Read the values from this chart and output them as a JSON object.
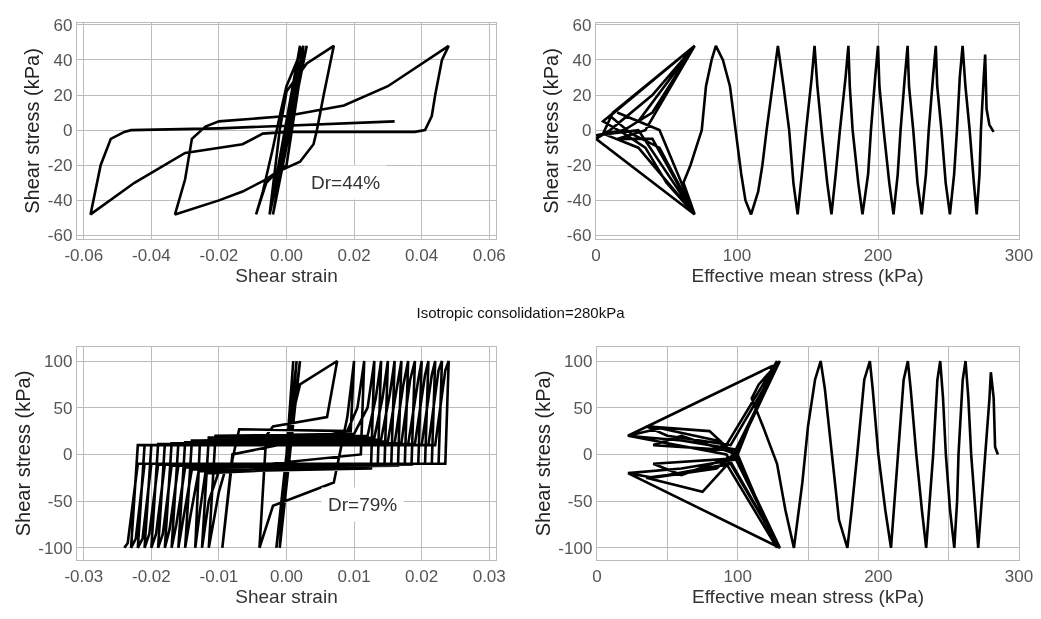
{
  "chart_data": [
    {
      "type": "line",
      "xlabel": "Shear strain",
      "ylabel": "Shear stress (kPa)",
      "xlim": [
        -0.062,
        0.062
      ],
      "ylim": [
        -62,
        61
      ],
      "xticks": [
        -0.06,
        -0.04,
        -0.02,
        {
          "value": 0,
          "label": "0.00"
        },
        0.02,
        0.04,
        0.06
      ],
      "yticks": [
        -60,
        -40,
        -20,
        0,
        20,
        40,
        60
      ],
      "grid": true,
      "line_style": "solid",
      "annotations": [
        "Dr=44%"
      ],
      "series": [
        {
          "color": "#000000",
          "x": [
            0,
            0.004,
            -0.005,
            0.005,
            -0.004,
            0.006,
            -0.005,
            -0.002,
            0,
            0.006,
            0.014,
            0.011,
            0.009,
            0.008,
            0.004,
            -0.003,
            -0.006,
            -0.009,
            -0.007,
            -0.004,
            -0.002,
            0,
            0.005,
            0.004,
            0,
            -0.006,
            -0.013,
            -0.02,
            -0.033,
            -0.03,
            -0.028,
            -0.024,
            -0.02,
            0,
            0.017,
            0.03,
            0.048,
            0.046,
            0.044,
            0.043,
            0.041,
            0.038,
            0,
            -0.007,
            -0.013,
            -0.03,
            -0.045,
            -0.058,
            -0.055,
            -0.052,
            -0.048,
            -0.046,
            -0.02,
            0.032
          ],
          "values": [
            0,
            48,
            -48,
            48,
            -48,
            48,
            -48,
            0,
            22,
            38,
            48,
            20,
            0,
            -8,
            -18,
            -24,
            -30,
            -48,
            -35,
            -10,
            8,
            25,
            48,
            30,
            -20,
            -28,
            -35,
            -40,
            -48,
            -28,
            -5,
            2,
            5,
            8,
            14,
            25,
            48,
            40,
            20,
            8,
            0,
            -1,
            -1,
            -2,
            -8,
            -13,
            -30,
            -48,
            -20,
            -5,
            -1,
            0,
            1,
            5
          ]
        }
      ]
    },
    {
      "type": "line",
      "xlabel": "Effective mean stress (kPa)",
      "ylabel": "Shear stress (kPa)",
      "xlim": [
        0,
        300
      ],
      "ylim": [
        -62,
        61
      ],
      "xticks": [
        0,
        100,
        200,
        300
      ],
      "yticks": [
        -60,
        -40,
        -20,
        0,
        20,
        40,
        60
      ],
      "grid": true,
      "line_style": "solid",
      "series": [
        {
          "color": "#000000",
          "x": [
            282,
            279,
            277,
            276,
            275,
            273,
            272,
            270,
            268,
            265,
            262,
            260,
            258,
            256,
            254,
            251,
            248,
            245,
            242,
            241,
            239,
            236,
            234,
            231,
            228,
            225,
            222,
            221,
            219,
            216,
            214,
            211,
            208,
            204,
            201,
            200,
            198,
            195,
            193,
            189,
            186,
            182,
            180,
            179,
            177,
            173,
            170,
            167,
            164,
            160,
            157,
            155,
            153,
            149,
            146,
            143,
            140,
            137,
            133,
            129,
            126,
            121,
            118,
            115,
            110,
            106,
            103,
            99,
            95,
            90,
            85,
            82,
            78,
            75,
            71,
            67,
            62,
            70,
            50,
            35,
            20,
            5,
            70,
            30,
            15,
            45,
            70,
            45,
            25,
            10,
            70,
            40,
            20,
            0,
            30,
            70,
            40,
            15,
            35,
            70,
            40,
            10,
            0,
            70,
            30,
            5,
            12,
            70
          ],
          "values": [
            -1,
            3,
            12,
            43,
            30,
            0,
            -25,
            -48,
            -30,
            0,
            25,
            48,
            30,
            0,
            -25,
            -48,
            -30,
            0,
            25,
            48,
            30,
            0,
            -25,
            -48,
            -30,
            0,
            25,
            48,
            30,
            0,
            -25,
            -48,
            -30,
            0,
            25,
            48,
            30,
            0,
            -25,
            -48,
            -30,
            0,
            25,
            48,
            30,
            0,
            -25,
            -48,
            -30,
            0,
            25,
            48,
            30,
            0,
            -25,
            -48,
            -30,
            0,
            25,
            48,
            30,
            0,
            -20,
            -35,
            -48,
            -40,
            -25,
            0,
            25,
            40,
            48,
            40,
            25,
            0,
            -10,
            -20,
            -30,
            -48,
            -30,
            -10,
            -2,
            5,
            48,
            5,
            10,
            0,
            -48,
            -10,
            -2,
            8,
            48,
            10,
            0,
            -3,
            0,
            -48,
            -5,
            -5,
            0,
            48,
            20,
            0,
            -5,
            -48,
            -10,
            -2,
            10,
            48
          ]
        }
      ]
    },
    {
      "type": "line",
      "title": "Isotropic consolidation=280kPa",
      "xlabel": "Shear strain",
      "ylabel": "Shear stress (kPa)",
      "xlim": [
        -0.031,
        0.031
      ],
      "ylim": [
        -113,
        115
      ],
      "xticks": [
        -0.03,
        -0.02,
        -0.01,
        {
          "value": 0,
          "label": "0.00"
        },
        0.01,
        0.02,
        0.03
      ],
      "yticks": [
        -100,
        -50,
        0,
        50,
        100
      ],
      "grid": true,
      "line_style": "solid",
      "annotations": [
        "Dr=79%"
      ],
      "series": [
        {
          "color": "#000000",
          "x": [
            0,
            0.001,
            -0.001,
            0.002,
            -0.0015,
            0.0015,
            -0.001,
            0.001,
            0.002,
            0.0075,
            0.006,
            -0.002,
            -0.003,
            -0.004,
            -0.002,
            0.007,
            0.009,
            0.01,
            0.0095,
            -0.007,
            -0.008,
            -0.0095,
            -0.008,
            0.009,
            0.0105,
            0.0115,
            0.011,
            -0.009,
            -0.01,
            -0.0115,
            -0.0105,
            0.01,
            0.012,
            0.013,
            0.0125,
            -0.01,
            -0.0115,
            -0.0125,
            -0.0115,
            0.012,
            0.0132,
            0.014,
            0.0135,
            -0.012,
            -0.0128,
            -0.0135,
            -0.0128,
            0.013,
            0.0142,
            0.015,
            0.0145,
            -0.013,
            -0.0142,
            -0.015,
            -0.014,
            0.014,
            0.0153,
            0.016,
            0.0155,
            -0.014,
            -0.0153,
            -0.016,
            -0.015,
            0.015,
            0.0163,
            0.017,
            0.0165,
            -0.015,
            -0.0163,
            -0.017,
            -0.016,
            0.016,
            0.0173,
            0.018,
            0.0175,
            -0.016,
            -0.0173,
            -0.018,
            -0.017,
            0.017,
            0.0183,
            0.019,
            0.0185,
            -0.017,
            -0.0183,
            -0.019,
            -0.018,
            0.018,
            0.0195,
            0.02,
            0.0195,
            -0.018,
            -0.0193,
            -0.02,
            -0.019,
            0.019,
            0.0205,
            0.021,
            0.0205,
            -0.019,
            -0.0203,
            -0.021,
            -0.02,
            0.02,
            0.0215,
            0.022,
            0.0215,
            -0.02,
            -0.0213,
            -0.022,
            -0.021,
            0.021,
            0.0225,
            0.023,
            0.0225,
            -0.021,
            -0.0223,
            -0.023,
            -0.022,
            0.022,
            0.0235,
            0.024,
            0.0235,
            -0.022,
            -0.0235,
            -0.024
          ],
          "values": [
            0,
            100,
            -100,
            100,
            -100,
            100,
            -100,
            45,
            75,
            100,
            40,
            30,
            20,
            -100,
            -55,
            -30,
            40,
            100,
            25,
            27,
            -5,
            -100,
            0,
            25,
            50,
            100,
            0,
            -15,
            -40,
            -100,
            20,
            22,
            50,
            100,
            -15,
            -18,
            -50,
            -100,
            18,
            20,
            60,
            100,
            -12,
            -20,
            -60,
            -100,
            15,
            18,
            60,
            100,
            -12,
            -18,
            -65,
            -100,
            15,
            16,
            65,
            100,
            -12,
            -16,
            -70,
            -100,
            13,
            14,
            70,
            100,
            -12,
            -14,
            -75,
            -100,
            12,
            12,
            75,
            100,
            -11,
            -12,
            -80,
            -100,
            12,
            12,
            80,
            100,
            -11,
            -12,
            -85,
            -100,
            11,
            11,
            80,
            100,
            -10,
            -11,
            -85,
            -100,
            11,
            11,
            85,
            100,
            -10,
            -11,
            -85,
            -100,
            10,
            10,
            85,
            100,
            -10,
            -10,
            -90,
            -100,
            10,
            10,
            90,
            100,
            -10,
            -10,
            -90,
            -100,
            10,
            10,
            90,
            100,
            -10,
            -10,
            -95,
            -100
          ]
        }
      ]
    },
    {
      "type": "line",
      "xlabel": "Effective mean stress (kPa)",
      "ylabel": "Shear stress (kPa)",
      "xlim": [
        0,
        300
      ],
      "ylim": [
        -113,
        115
      ],
      "xticks": [
        0,
        {
          "value": 50,
          "label": null
        },
        100,
        {
          "value": 150,
          "label": null
        },
        200,
        {
          "value": 250,
          "label": null
        },
        300
      ],
      "yticks": [
        -100,
        -50,
        0,
        50,
        100
      ],
      "grid": true,
      "line_style": "solid",
      "series": [
        {
          "color": "#000000",
          "x": [
            285,
            283,
            282,
            280,
            279,
            276,
            273,
            271,
            269,
            266,
            264,
            262,
            260,
            257,
            256,
            254,
            251,
            248,
            246,
            244,
            242,
            239,
            236,
            234,
            231,
            227,
            223,
            221,
            218,
            214,
            211,
            209,
            205,
            200,
            196,
            194,
            190,
            185,
            181,
            178,
            172,
            167,
            162,
            159,
            155,
            150,
            146,
            140,
            134,
            128,
            118,
            110,
            115,
            130,
            100,
            60,
            22,
            45,
            85,
            97,
            130,
            100,
            60,
            22,
            40,
            85,
            97,
            130,
            95,
            50,
            35,
            80,
            98,
            130,
            95,
            50,
            35,
            75,
            98,
            128,
            90,
            40,
            60,
            100,
            128,
            90,
            40,
            60,
            100,
            125,
            22,
            92,
            130,
            22
          ],
          "values": [
            0,
            8,
            60,
            88,
            60,
            0,
            -60,
            -100,
            -60,
            0,
            60,
            100,
            80,
            0,
            -50,
            -100,
            -60,
            0,
            60,
            100,
            80,
            0,
            -60,
            -100,
            -60,
            0,
            70,
            100,
            80,
            0,
            -60,
            -100,
            -60,
            0,
            70,
            100,
            80,
            0,
            -60,
            -100,
            -70,
            0,
            70,
            100,
            80,
            30,
            -30,
            -100,
            -60,
            -10,
            30,
            60,
            75,
            100,
            5,
            15,
            20,
            28,
            15,
            0,
            -100,
            -5,
            -15,
            -20,
            -25,
            -15,
            0,
            100,
            10,
            20,
            30,
            25,
            0,
            -100,
            -10,
            -22,
            -25,
            -40,
            -2,
            100,
            5,
            10,
            20,
            0,
            -100,
            -5,
            -10,
            -22,
            0,
            95,
            20,
            0,
            -100,
            -20
          ]
        }
      ]
    }
  ]
}
